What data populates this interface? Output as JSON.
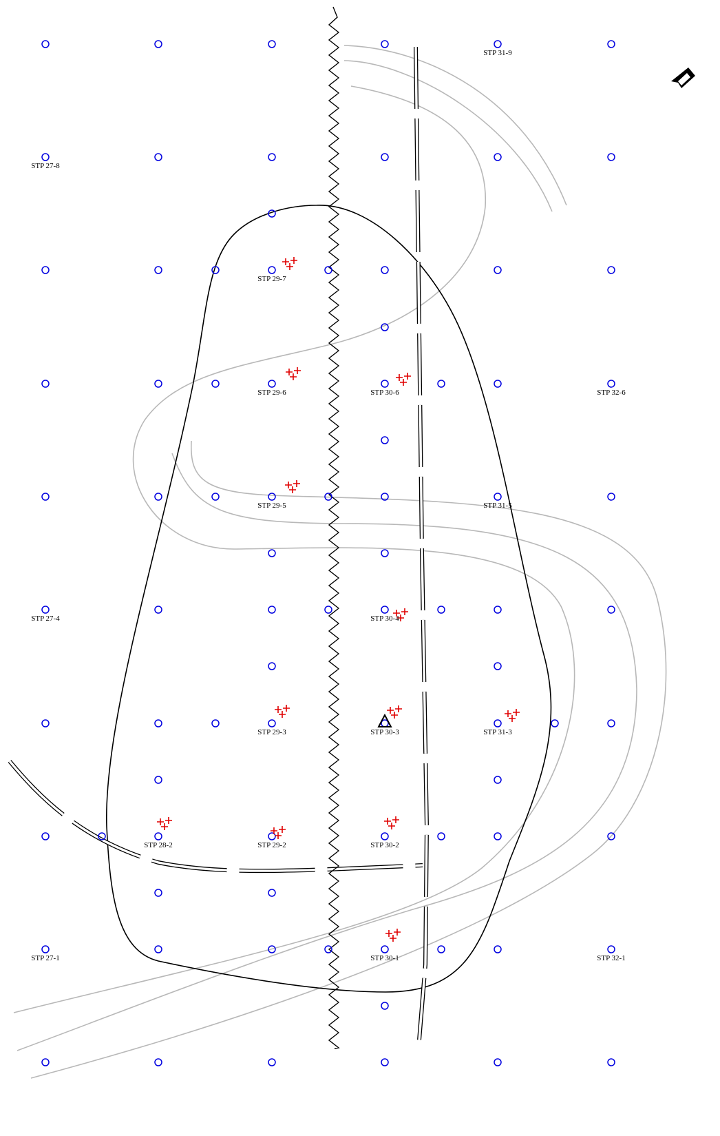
{
  "labels": [
    "STP 31-9",
    "STP 27-8",
    "STP 29-7",
    "STP 29-6",
    "STP 30-6",
    "STP 32-6",
    "STP 29-5",
    "STP 31-5",
    "STP 27-4",
    "STP 30-4",
    "STP 29-3",
    "STP 30-3",
    "STP 31-3",
    "STP 28-2",
    "STP 29-2",
    "STP 30-2",
    "STP 27-1",
    "STP 30-1",
    "STP 32-1"
  ]
}
